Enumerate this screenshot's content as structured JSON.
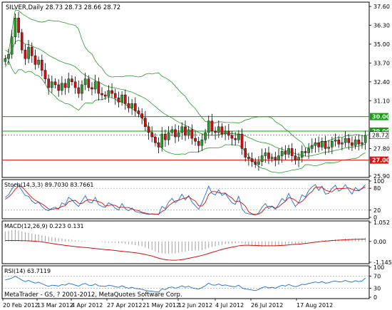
{
  "colors": {
    "bg": "#ffffff",
    "frame": "#000000",
    "grid": "#c8c8c8",
    "bull": "#2a9a2a",
    "bear": "#d01010",
    "band": "#2a9a2a",
    "hline_green": "#10a010",
    "hline_red": "#e01010",
    "label_green": "#10a010",
    "label_red": "#e01010",
    "label_text": "#ffffff",
    "last_price": "#d01010",
    "stoch_main": "#1b6fd0",
    "stoch_signal": "#d01010",
    "macd_hist": "#a0a0a0",
    "macd_signal": "#d01010",
    "rsi": "#1b6fd0",
    "level": "#9a9a9a"
  },
  "main": {
    "title": "SILVER,Daily  28.73 28.73 28.66 28.72",
    "last_price_label": "28.72",
    "hline_green_labels": [
      "30.00",
      "29.00"
    ],
    "hline_red_label": "27.00"
  },
  "stoch": {
    "title": "Stoch(14,3,3) 89.7030 83.7661"
  },
  "macd": {
    "title": "MACD(12,26,9) 0.223 0.131"
  },
  "rsi": {
    "title": "RSI(14) 63.7119"
  },
  "footer": {
    "copyright": "MetaTrader - GS, ? 2001-2012, MetaQuotes Software Corp."
  },
  "chart_data": [
    {
      "type": "candlestick",
      "title": "SILVER,Daily  28.73 28.73 28.66 28.72",
      "ylim": [
        25.9,
        37.8
      ],
      "ticks": [
        "37.60",
        "36.30",
        "35.00",
        "33.70",
        "32.40",
        "31.10",
        "30.00",
        "29.00",
        "28.72",
        "27.80",
        "27.00",
        "25.90"
      ],
      "x_labels": [
        "20 Feb 2012",
        "13 Mar 2012",
        "4 Apr 2012",
        "27 Apr 2012",
        "21 May 2012",
        "12 Jun 2012",
        "4 Jul 2012",
        "26 Jul 2012",
        "17 Aug 2012"
      ],
      "close": [
        34.0,
        34.3,
        35.5,
        36.8,
        35.8,
        34.6,
        34.0,
        34.8,
        34.2,
        33.6,
        33.9,
        33.2,
        32.6,
        32.0,
        32.4,
        32.2,
        31.8,
        32.3,
        32.0,
        32.6,
        32.4,
        32.0,
        31.6,
        32.2,
        32.6,
        32.0,
        31.9,
        32.4,
        31.6,
        31.5,
        31.4,
        31.8,
        31.6,
        31.3,
        31.0,
        31.5,
        30.9,
        30.6,
        30.9,
        30.4,
        30.2,
        29.9,
        29.3,
        28.9,
        28.6,
        28.2,
        27.9,
        28.8,
        28.4,
        28.9,
        29.1,
        28.6,
        28.9,
        29.3,
        28.7,
        29.1,
        28.5,
        28.3,
        28.0,
        28.4,
        28.9,
        29.7,
        29.0,
        28.9,
        29.3,
        28.8,
        29.0,
        28.7,
        28.5,
        28.4,
        28.8,
        27.8,
        27.2,
        27.1,
        26.9,
        26.7,
        26.9,
        27.3,
        27.5,
        27.1,
        27.2,
        27.0,
        27.3,
        27.6,
        27.4,
        27.8,
        27.3,
        27.0,
        27.2,
        27.6,
        27.5,
        27.8,
        28.0,
        28.2,
        27.9,
        28.3,
        27.8,
        27.9,
        28.3,
        28.4,
        28.1,
        28.2,
        28.5,
        28.2,
        28.0,
        28.4,
        28.1,
        28.2,
        28.72
      ],
      "hlines": [
        30.0,
        29.0,
        27.0
      ],
      "last": 28.72
    },
    {
      "type": "line",
      "title": "Stoch(14,3,3) 89.7030 83.7661",
      "ylim": [
        0,
        100
      ],
      "ticks": [
        "100",
        "80",
        "20",
        "0"
      ],
      "levels": [
        80,
        20
      ],
      "series": [
        {
          "name": "Main",
          "values": [
            55,
            62,
            78,
            92,
            88,
            74,
            60,
            58,
            45,
            38,
            42,
            30,
            22,
            18,
            25,
            28,
            22,
            40,
            35,
            55,
            48,
            38,
            30,
            45,
            60,
            42,
            40,
            55,
            35,
            30,
            28,
            40,
            35,
            25,
            20,
            38,
            24,
            18,
            26,
            16,
            14,
            12,
            10,
            8,
            10,
            9,
            8,
            30,
            24,
            42,
            52,
            40,
            48,
            64,
            48,
            60,
            42,
            32,
            22,
            40,
            62,
            86,
            66,
            62,
            76,
            60,
            66,
            52,
            40,
            36,
            58,
            24,
            12,
            10,
            8,
            6,
            12,
            28,
            38,
            24,
            30,
            22,
            36,
            52,
            44,
            66,
            46,
            30,
            40,
            62,
            56,
            74,
            84,
            90,
            74,
            86,
            64,
            66,
            80,
            88,
            72,
            78,
            90,
            76,
            64,
            82,
            74,
            80,
            90
          ]
        },
        {
          "name": "Signal",
          "values": [
            50,
            56,
            65,
            77,
            86,
            85,
            74,
            64,
            54,
            47,
            42,
            37,
            31,
            23,
            22,
            24,
            25,
            30,
            32,
            43,
            46,
            47,
            39,
            38,
            45,
            49,
            47,
            46,
            43,
            40,
            31,
            33,
            34,
            33,
            27,
            28,
            27,
            27,
            23,
            20,
            19,
            14,
            12,
            10,
            9,
            9,
            9,
            16,
            21,
            32,
            39,
            45,
            47,
            51,
            53,
            57,
            50,
            45,
            32,
            31,
            41,
            63,
            71,
            71,
            68,
            66,
            67,
            59,
            53,
            43,
            45,
            39,
            31,
            15,
            10,
            8,
            9,
            15,
            26,
            30,
            31,
            25,
            29,
            37,
            44,
            54,
            52,
            47,
            39,
            44,
            53,
            64,
            71,
            83,
            83,
            83,
            75,
            72,
            70,
            78,
            80,
            79,
            80,
            81,
            77,
            74,
            73,
            79,
            84
          ]
        }
      ]
    },
    {
      "type": "bar+line",
      "title": "MACD(12,26,9) 0.223 0.131",
      "ylim": [
        -1.145,
        1.052
      ],
      "ticks": [
        "1.052",
        "0.00",
        "-1.145"
      ],
      "series": [
        {
          "name": "MACD",
          "values": [
            0.55,
            0.6,
            0.62,
            0.65,
            0.6,
            0.55,
            0.5,
            0.48,
            0.44,
            0.4,
            0.38,
            0.34,
            0.3,
            0.26,
            0.24,
            0.22,
            0.18,
            0.16,
            0.13,
            0.12,
            0.1,
            0.07,
            0.04,
            0.03,
            0.04,
            0.02,
            0.0,
            0.0,
            -0.02,
            -0.04,
            -0.06,
            -0.06,
            -0.07,
            -0.09,
            -0.11,
            -0.11,
            -0.13,
            -0.16,
            -0.17,
            -0.2,
            -0.23,
            -0.27,
            -0.33,
            -0.4,
            -0.47,
            -0.55,
            -0.63,
            -0.65,
            -0.68,
            -0.68,
            -0.66,
            -0.66,
            -0.63,
            -0.58,
            -0.56,
            -0.52,
            -0.51,
            -0.5,
            -0.5,
            -0.48,
            -0.43,
            -0.35,
            -0.31,
            -0.27,
            -0.22,
            -0.19,
            -0.15,
            -0.13,
            -0.12,
            -0.11,
            -0.08,
            -0.1,
            -0.15,
            -0.19,
            -0.23,
            -0.27,
            -0.29,
            -0.29,
            -0.27,
            -0.27,
            -0.26,
            -0.26,
            -0.24,
            -0.2,
            -0.18,
            -0.14,
            -0.13,
            -0.13,
            -0.12,
            -0.09,
            -0.07,
            -0.04,
            -0.01,
            0.02,
            0.03,
            0.06,
            0.06,
            0.06,
            0.09,
            0.11,
            0.12,
            0.13,
            0.15,
            0.15,
            0.15,
            0.17,
            0.17,
            0.18,
            0.22
          ]
        },
        {
          "name": "Signal",
          "values": [
            0.05,
            0.05,
            0.05,
            0.05,
            0.05,
            0.04,
            0.04,
            0.03,
            0.02,
            0.01,
            0.0,
            -0.02,
            -0.05,
            -0.08,
            -0.11,
            -0.14,
            -0.17,
            -0.19,
            -0.22,
            -0.24,
            -0.26,
            -0.28,
            -0.3,
            -0.32,
            -0.33,
            -0.35,
            -0.37,
            -0.39,
            -0.41,
            -0.43,
            -0.45,
            -0.46,
            -0.48,
            -0.5,
            -0.52,
            -0.54,
            -0.56,
            -0.58,
            -0.6,
            -0.62,
            -0.65,
            -0.68,
            -0.72,
            -0.76,
            -0.8,
            -0.86,
            -0.92,
            -0.97,
            -1.0,
            -1.02,
            -1.03,
            -1.03,
            -1.02,
            -1.0,
            -0.97,
            -0.93,
            -0.89,
            -0.85,
            -0.81,
            -0.77,
            -0.72,
            -0.66,
            -0.6,
            -0.55,
            -0.49,
            -0.44,
            -0.39,
            -0.35,
            -0.31,
            -0.28,
            -0.24,
            -0.22,
            -0.21,
            -0.21,
            -0.22,
            -0.22,
            -0.23,
            -0.24,
            -0.24,
            -0.24,
            -0.24,
            -0.24,
            -0.23,
            -0.22,
            -0.21,
            -0.19,
            -0.17,
            -0.16,
            -0.15,
            -0.13,
            -0.11,
            -0.09,
            -0.06,
            -0.04,
            -0.02,
            0.0,
            0.02,
            0.03,
            0.05,
            0.06,
            0.07,
            0.08,
            0.09,
            0.1,
            0.11,
            0.12,
            0.12,
            0.13,
            0.13
          ]
        }
      ]
    },
    {
      "type": "line",
      "title": "RSI(14) 63.7119",
      "ylim": [
        0,
        100
      ],
      "ticks": [
        "100",
        "70",
        "30",
        "0"
      ],
      "levels": [
        70,
        30
      ],
      "series": [
        {
          "name": "RSI",
          "values": [
            58,
            60,
            64,
            70,
            64,
            57,
            52,
            56,
            51,
            47,
            50,
            45,
            40,
            36,
            40,
            39,
            37,
            42,
            40,
            46,
            44,
            40,
            37,
            43,
            46,
            40,
            39,
            44,
            38,
            37,
            36,
            40,
            38,
            35,
            33,
            38,
            33,
            30,
            33,
            29,
            28,
            26,
            23,
            21,
            20,
            18,
            17,
            28,
            25,
            32,
            34,
            30,
            33,
            38,
            33,
            37,
            31,
            29,
            27,
            32,
            38,
            47,
            41,
            40,
            44,
            39,
            41,
            38,
            36,
            35,
            40,
            31,
            27,
            26,
            24,
            22,
            26,
            32,
            35,
            31,
            33,
            30,
            35,
            40,
            37,
            43,
            38,
            35,
            38,
            43,
            42,
            46,
            48,
            51,
            48,
            52,
            47,
            48,
            52,
            54,
            51,
            52,
            56,
            52,
            50,
            55,
            52,
            54,
            64
          ]
        }
      ]
    }
  ]
}
